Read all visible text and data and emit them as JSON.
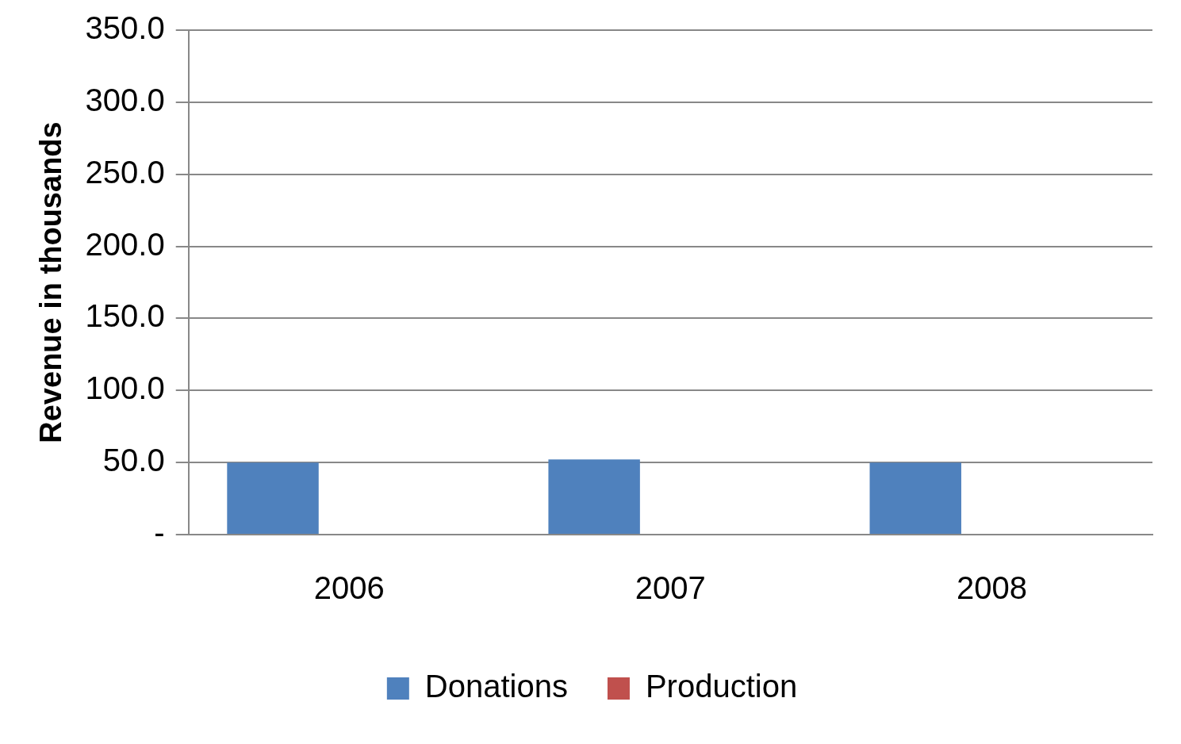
{
  "chart_data": {
    "type": "bar",
    "ylabel": "Revenue in thousands",
    "categories": [
      "2006",
      "2007",
      "2008"
    ],
    "series": [
      {
        "name": "Donations",
        "color": "#4f81bd",
        "values": [
          50.0,
          52.2,
          50.0
        ]
      },
      {
        "name": "Production",
        "color": "#c0504d",
        "values": [
          null,
          null,
          null
        ]
      }
    ],
    "ylim": [
      0,
      350
    ],
    "yticks": [
      {
        "value": 0,
        "label": "-"
      },
      {
        "value": 50,
        "label": "50.0"
      },
      {
        "value": 100,
        "label": "100.0"
      },
      {
        "value": 150,
        "label": "150.0"
      },
      {
        "value": 200,
        "label": "200.0"
      },
      {
        "value": 250,
        "label": "250.0"
      },
      {
        "value": 300,
        "label": "300.0"
      },
      {
        "value": 350,
        "label": "350.0"
      }
    ],
    "grid": "y",
    "legend": "bottom"
  }
}
